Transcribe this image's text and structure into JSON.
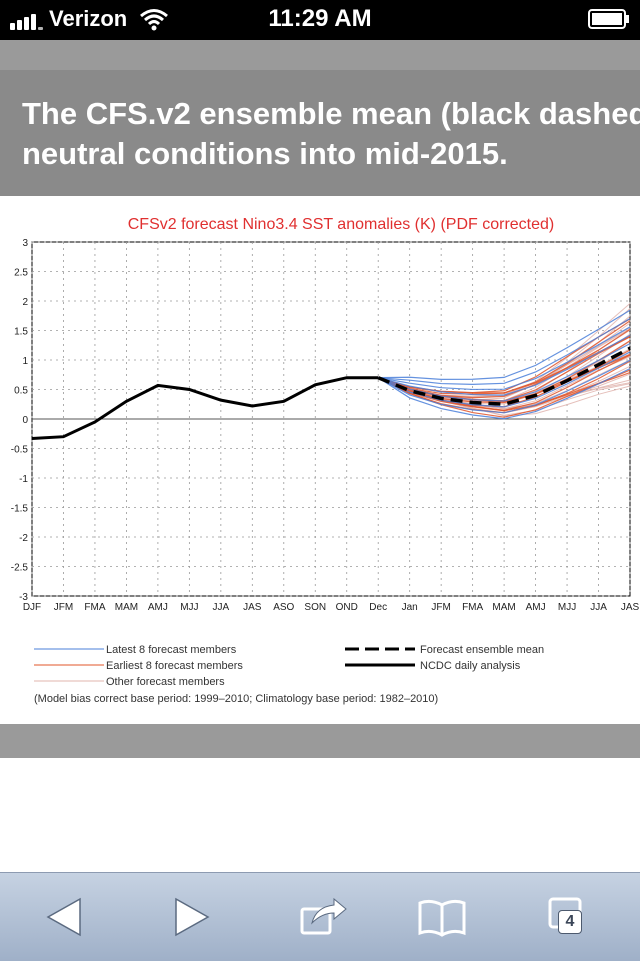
{
  "status_bar": {
    "carrier": "Verizon",
    "time": "11:29 AM",
    "icons": [
      "signal-bars-icon",
      "wifi-icon",
      "battery-icon"
    ]
  },
  "banner": {
    "text": "The CFS.v2 ensemble mean (black dashed\nneutral conditions into mid-2015."
  },
  "chart_data": {
    "type": "line",
    "title": "CFSv2 forecast Nino3.4 SST anomalies (K) (PDF corrected)",
    "xlabels": [
      "DJF",
      "JFM",
      "FMA",
      "MAM",
      "AMJ",
      "MJJ",
      "JJA",
      "JAS",
      "ASO",
      "SON",
      "OND",
      "Dec",
      "Jan",
      "JFM",
      "FMA",
      "MAM",
      "AMJ",
      "MJJ",
      "JJA",
      "JAS"
    ],
    "yticks": [
      "3",
      "2.5",
      "2",
      "1.5",
      "1",
      "0.5",
      "0",
      "-0.5",
      "-1",
      "-1.5",
      "-2",
      "-2.5",
      "-3"
    ],
    "ylim": [
      -3,
      3
    ],
    "grid": true,
    "series": [
      {
        "name": "NCDC daily analysis",
        "style": "solid-black",
        "x": [
          0,
          1,
          2,
          3,
          4,
          5,
          6,
          7,
          8,
          9,
          10,
          11
        ],
        "values": [
          -0.33,
          -0.3,
          -0.05,
          0.3,
          0.57,
          0.5,
          0.32,
          0.22,
          0.3,
          0.58,
          0.7,
          0.7
        ]
      },
      {
        "name": "Forecast ensemble mean",
        "style": "dashed-black",
        "x": [
          11,
          12,
          13,
          14,
          15,
          16,
          17,
          18,
          19
        ],
        "values": [
          0.7,
          0.48,
          0.35,
          0.28,
          0.25,
          0.4,
          0.65,
          0.92,
          1.2
        ]
      }
    ],
    "legend": [
      {
        "label": "Latest 8 forecast members",
        "color": "#4a7fd9"
      },
      {
        "label": "Earliest 8 forecast members",
        "color": "#e0552a"
      },
      {
        "label": "Other forecast members",
        "color": "#e0b4ae"
      },
      {
        "label": "Forecast ensemble mean",
        "color": "#000000"
      },
      {
        "label": "NCDC daily analysis",
        "color": "#000000"
      }
    ],
    "footnote": "(Model bias correct base period: 1999–2010; Climatology base period: 1982–2010)",
    "colors": {
      "title": "#e03030",
      "latest": "#4a7fd9",
      "earliest": "#e0552a",
      "other": "#e0b4ae"
    }
  },
  "toolbar": {
    "tabs_count": "4",
    "icons": [
      "back-arrow-icon",
      "forward-arrow-icon",
      "share-icon",
      "bookmarks-icon",
      "tabs-icon"
    ]
  }
}
